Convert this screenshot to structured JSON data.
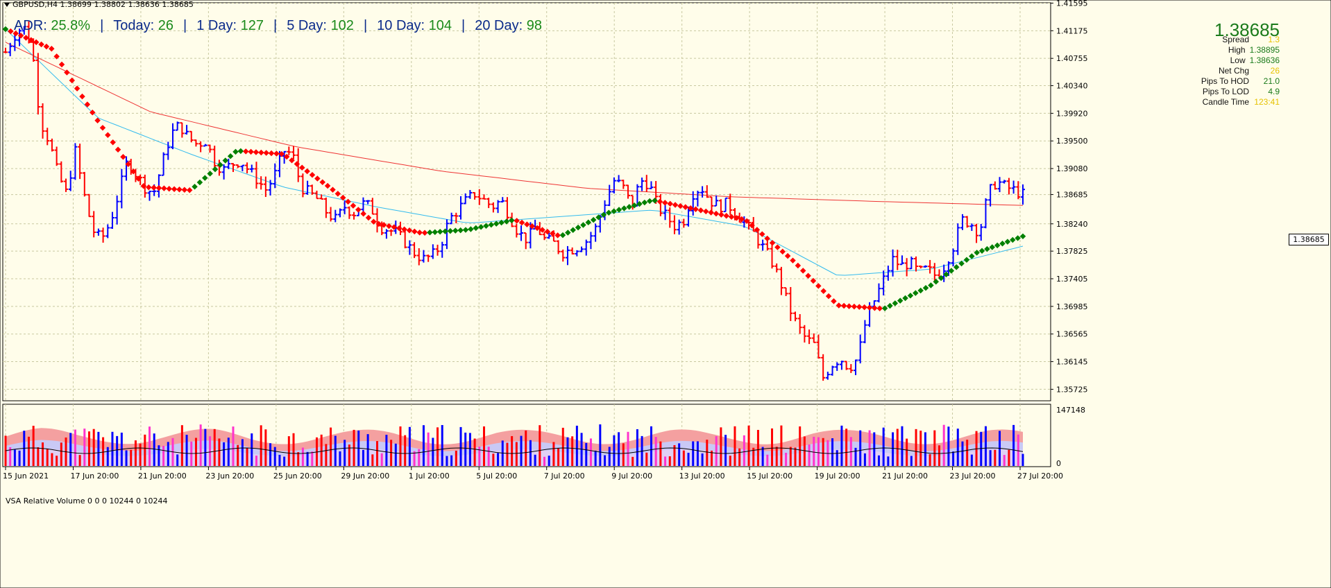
{
  "header": {
    "symbol_line": "GBPUSD,H4  1.38699 1.38802 1.38636 1.38685"
  },
  "adr": {
    "adr_label": "ADR:",
    "adr_value": "25.8%",
    "today_label": "Today:",
    "today_value": "26",
    "d1_label": "1 Day:",
    "d1_value": "127",
    "d5_label": "5 Day:",
    "d5_value": "102",
    "d10_label": "10 Day:",
    "d10_value": "104",
    "d20_label": "20 Day:",
    "d20_value": "98",
    "separator": "|"
  },
  "info": {
    "price": "1.38685",
    "rows": [
      {
        "label": "Spread",
        "value": "1.3",
        "color": "#e6c200"
      },
      {
        "label": "High",
        "value": "1.38895",
        "color": "#1a7a1a"
      },
      {
        "label": "Low",
        "value": "1.38636",
        "color": "#1a7a1a"
      },
      {
        "label": "Net Chg",
        "value": "26",
        "color": "#e6c200"
      },
      {
        "label": "Pips To HOD",
        "value": "21.0",
        "color": "#1a7a1a"
      },
      {
        "label": "Pips To LOD",
        "value": "4.9",
        "color": "#1a7a1a"
      },
      {
        "label": "Candle Time",
        "value": "123:41",
        "color": "#e6c200"
      }
    ]
  },
  "vsa": {
    "label": "VSA Relative Volume 0 0 0 10244 0 10244",
    "scale_max": "147148",
    "scale_min": "0"
  },
  "current_price_tag": "1.38685",
  "colors": {
    "bull": "#0000ff",
    "bear": "#ff0000",
    "up_ma": "#008000",
    "down_ma": "#ff0000",
    "sma200": "#ee3333",
    "sma50": "#33bbee",
    "grid": "#c8c8a0"
  },
  "chart_data": {
    "type": "candlestick",
    "symbol": "GBPUSD",
    "timeframe": "H4",
    "y_ticks": [
      "1.41595",
      "1.41175",
      "1.40755",
      "1.40340",
      "1.39920",
      "1.39500",
      "1.39080",
      "1.38685",
      "1.38240",
      "1.37825",
      "1.37405",
      "1.36985",
      "1.36565",
      "1.36145",
      "1.35725"
    ],
    "x_ticks": [
      "15 Jun 2021",
      "17 Jun 20:00",
      "21 Jun 20:00",
      "23 Jun 20:00",
      "25 Jun 20:00",
      "29 Jun 20:00",
      "1 Jul 20:00",
      "5 Jul 20:00",
      "7 Jul 20:00",
      "9 Jul 20:00",
      "13 Jul 20:00",
      "15 Jul 20:00",
      "19 Jul 20:00",
      "21 Jul 20:00",
      "23 Jul 20:00",
      "27 Jul 20:00"
    ],
    "ylim": [
      1.3555,
      1.416
    ],
    "close_path": [
      1.4085,
      1.411,
      1.4125,
      1.4095,
      1.398,
      1.395,
      1.39,
      1.387,
      1.3935,
      1.387,
      1.3815,
      1.38,
      1.3825,
      1.387,
      1.392,
      1.39,
      1.388,
      1.387,
      1.3915,
      1.396,
      1.3975,
      1.3955,
      1.3945,
      1.395,
      1.392,
      1.3905,
      1.3915,
      1.392,
      1.3905,
      1.389,
      1.3875,
      1.39,
      1.3935,
      1.393,
      1.388,
      1.387,
      1.386,
      1.384,
      1.383,
      1.385,
      1.384,
      1.3855,
      1.385,
      1.382,
      1.3815,
      1.381,
      1.3795,
      1.378,
      1.377,
      1.3775,
      1.379,
      1.383,
      1.3845,
      1.386,
      1.387,
      1.386,
      1.385,
      1.386,
      1.3835,
      1.381,
      1.38,
      1.382,
      1.38,
      1.3795,
      1.378,
      1.3785,
      1.379,
      1.38,
      1.382,
      1.386,
      1.389,
      1.388,
      1.385,
      1.389,
      1.3885,
      1.385,
      1.3835,
      1.382,
      1.383,
      1.387,
      1.388,
      1.386,
      1.385,
      1.3855,
      1.384,
      1.3825,
      1.381,
      1.379,
      1.377,
      1.374,
      1.37,
      1.367,
      1.365,
      1.364,
      1.359,
      1.361,
      1.362,
      1.3605,
      1.362,
      1.368,
      1.371,
      1.374,
      1.377,
      1.376,
      1.3765,
      1.375,
      1.3755,
      1.3745,
      1.376,
      1.379,
      1.383,
      1.3825,
      1.381,
      1.387,
      1.3889,
      1.388,
      1.3875,
      1.38685
    ],
    "sma200_path": [
      1.41,
      1.3994,
      1.3941,
      1.3904,
      1.3878,
      1.3865,
      1.3858,
      1.3852
    ],
    "sma50_path": [
      1.412,
      1.3985,
      1.393,
      1.388,
      1.385,
      1.3825,
      1.3835,
      1.3845,
      1.382,
      1.3745,
      1.3755,
      1.379
    ],
    "trend_ma_path": [
      1.412,
      1.409,
      1.398,
      1.388,
      1.3875,
      1.3935,
      1.393,
      1.388,
      1.3825,
      1.381,
      1.3815,
      1.383,
      1.3805,
      1.384,
      1.386,
      1.3845,
      1.383,
      1.377,
      1.37,
      1.3695,
      1.373,
      1.378,
      1.3805
    ],
    "volume_relative": [
      0.55,
      0.85,
      0.4,
      0.6,
      0.45,
      0.5,
      0.7,
      0.35,
      0.5,
      0.55,
      0.45,
      0.6,
      0.4,
      0.5,
      0.65,
      0.4,
      0.55,
      0.5,
      0.45,
      0.6,
      0.35,
      0.5,
      0.45,
      0.7,
      0.4,
      0.55,
      0.5,
      0.45,
      0.6,
      0.4
    ]
  }
}
